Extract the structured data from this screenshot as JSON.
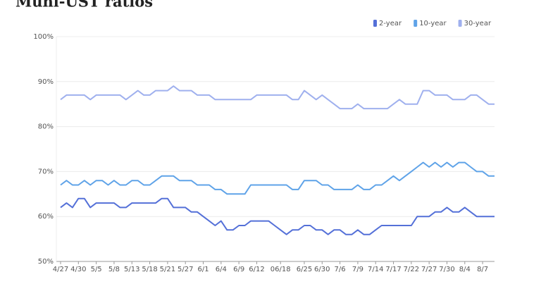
{
  "chart_data": {
    "type": "line",
    "title": "Muni-UST ratios",
    "categories": [
      "4/27",
      null,
      null,
      "4/30",
      null,
      null,
      "5/5",
      null,
      null,
      "5/8",
      null,
      null,
      "5/13",
      null,
      null,
      "5/18",
      null,
      null,
      "5/21",
      null,
      null,
      "5/27",
      null,
      null,
      "6/1",
      null,
      null,
      "6/4",
      null,
      null,
      "6/9",
      null,
      null,
      "6/12",
      null,
      null,
      null,
      "06/18",
      null,
      null,
      null,
      "6/25",
      null,
      null,
      "6/30",
      null,
      null,
      "7/6",
      null,
      null,
      "7/9",
      null,
      null,
      "7/14",
      null,
      null,
      "7/17",
      null,
      null,
      "7/22",
      null,
      null,
      "7/27",
      null,
      null,
      "7/30",
      null,
      null,
      "8/4",
      null,
      null,
      "8/7",
      null,
      null
    ],
    "series": [
      {
        "name": "2-year",
        "color": "#5470d8",
        "values": [
          62,
          63,
          62,
          64,
          64,
          62,
          63,
          63,
          63,
          63,
          62,
          62,
          63,
          63,
          63,
          63,
          63,
          64,
          64,
          62,
          62,
          62,
          61,
          61,
          60,
          59,
          58,
          59,
          57,
          57,
          58,
          58,
          59,
          59,
          59,
          59,
          58,
          57,
          56,
          57,
          57,
          58,
          58,
          57,
          57,
          56,
          57,
          57,
          56,
          56,
          57,
          56,
          56,
          57,
          58,
          58,
          58,
          58,
          58,
          58,
          60,
          60,
          60,
          61,
          61,
          62,
          61,
          61,
          62,
          61,
          60,
          60,
          60,
          60
        ]
      },
      {
        "name": "10-year",
        "color": "#5fa3e8",
        "values": [
          67,
          68,
          67,
          67,
          68,
          67,
          68,
          68,
          67,
          68,
          67,
          67,
          68,
          68,
          67,
          67,
          68,
          69,
          69,
          69,
          68,
          68,
          68,
          67,
          67,
          67,
          66,
          66,
          65,
          65,
          65,
          65,
          67,
          67,
          67,
          67,
          67,
          67,
          67,
          66,
          66,
          68,
          68,
          68,
          67,
          67,
          66,
          66,
          66,
          66,
          67,
          66,
          66,
          67,
          67,
          68,
          69,
          68,
          69,
          70,
          71,
          72,
          71,
          72,
          71,
          72,
          71,
          72,
          72,
          71,
          70,
          70,
          69,
          69
        ]
      },
      {
        "name": "30-year",
        "color": "#9fb0ee",
        "values": [
          86,
          87,
          87,
          87,
          87,
          86,
          87,
          87,
          87,
          87,
          87,
          86,
          87,
          88,
          87,
          87,
          88,
          88,
          88,
          89,
          88,
          88,
          88,
          87,
          87,
          87,
          86,
          86,
          86,
          86,
          86,
          86,
          86,
          87,
          87,
          87,
          87,
          87,
          87,
          86,
          86,
          88,
          87,
          86,
          87,
          86,
          85,
          84,
          84,
          84,
          85,
          84,
          84,
          84,
          84,
          84,
          85,
          86,
          85,
          85,
          85,
          88,
          88,
          87,
          87,
          87,
          86,
          86,
          86,
          87,
          87,
          86,
          85,
          85
        ]
      }
    ],
    "ylim": [
      50,
      100
    ],
    "yticks": [
      {
        "value": 50,
        "label": "50%"
      },
      {
        "value": 60,
        "label": "60%"
      },
      {
        "value": 70,
        "label": "70%"
      },
      {
        "value": 80,
        "label": "80%"
      },
      {
        "value": 90,
        "label": "90%"
      },
      {
        "value": 100,
        "label": "100%"
      }
    ],
    "grid": true,
    "legend": "top-right"
  }
}
